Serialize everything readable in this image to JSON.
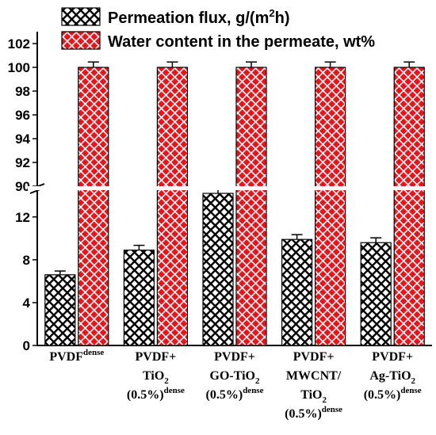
{
  "chart_data": {
    "type": "bar",
    "title": "",
    "xlabel": "",
    "ylabel": "",
    "y_break": [
      14.5,
      90
    ],
    "ylim_lower": [
      0,
      14.5
    ],
    "ylim_upper": [
      90,
      103
    ],
    "yticks_lower": [
      "0",
      "4",
      "8",
      "12"
    ],
    "yticks_upper": [
      "90",
      "92",
      "94",
      "96",
      "98",
      "100",
      "102"
    ],
    "legend_position": "top",
    "categories": [
      {
        "lines": [
          {
            "text": "PVDF",
            "sup": "dense"
          }
        ]
      },
      {
        "lines": [
          {
            "text": "PVDF+"
          },
          {
            "text": "TiO",
            "sub": "2"
          },
          {
            "text": "(0.5%)",
            "sup": "dense"
          }
        ]
      },
      {
        "lines": [
          {
            "text": "PVDF+"
          },
          {
            "text": "GO-TiO",
            "sub": "2"
          },
          {
            "text": "(0.5%)",
            "sup": "dense"
          }
        ]
      },
      {
        "lines": [
          {
            "text": "PVDF+"
          },
          {
            "text": "MWCNT/"
          },
          {
            "text": "TiO",
            "sub": "2"
          },
          {
            "text": "(0.5%)",
            "sup": "dense"
          }
        ]
      },
      {
        "lines": [
          {
            "text": "PVDF+"
          },
          {
            "text": "Ag-TiO",
            "sub": "2"
          },
          {
            "text": "(0.5%)",
            "sup": "dense"
          }
        ]
      }
    ],
    "series": [
      {
        "name": "Permeation flux, g/(m²h)",
        "legend_parts": {
          "a": "Permeation flux, g/(m",
          "sup": "2",
          "b": "h)"
        },
        "values": [
          6.6,
          8.9,
          14.2,
          9.9,
          9.6
        ],
        "errors": [
          0.35,
          0.45,
          0.55,
          0.45,
          0.45
        ],
        "fill_color": "#000000",
        "bg_color": "#ffffff"
      },
      {
        "name": "Water content in the permeate, wt%",
        "values": [
          100,
          100,
          100,
          100,
          100
        ],
        "errors": [
          0.45,
          0.45,
          0.45,
          0.45,
          0.45
        ],
        "fill_color": "#ffffff",
        "bg_color": "#e8141b"
      }
    ]
  }
}
